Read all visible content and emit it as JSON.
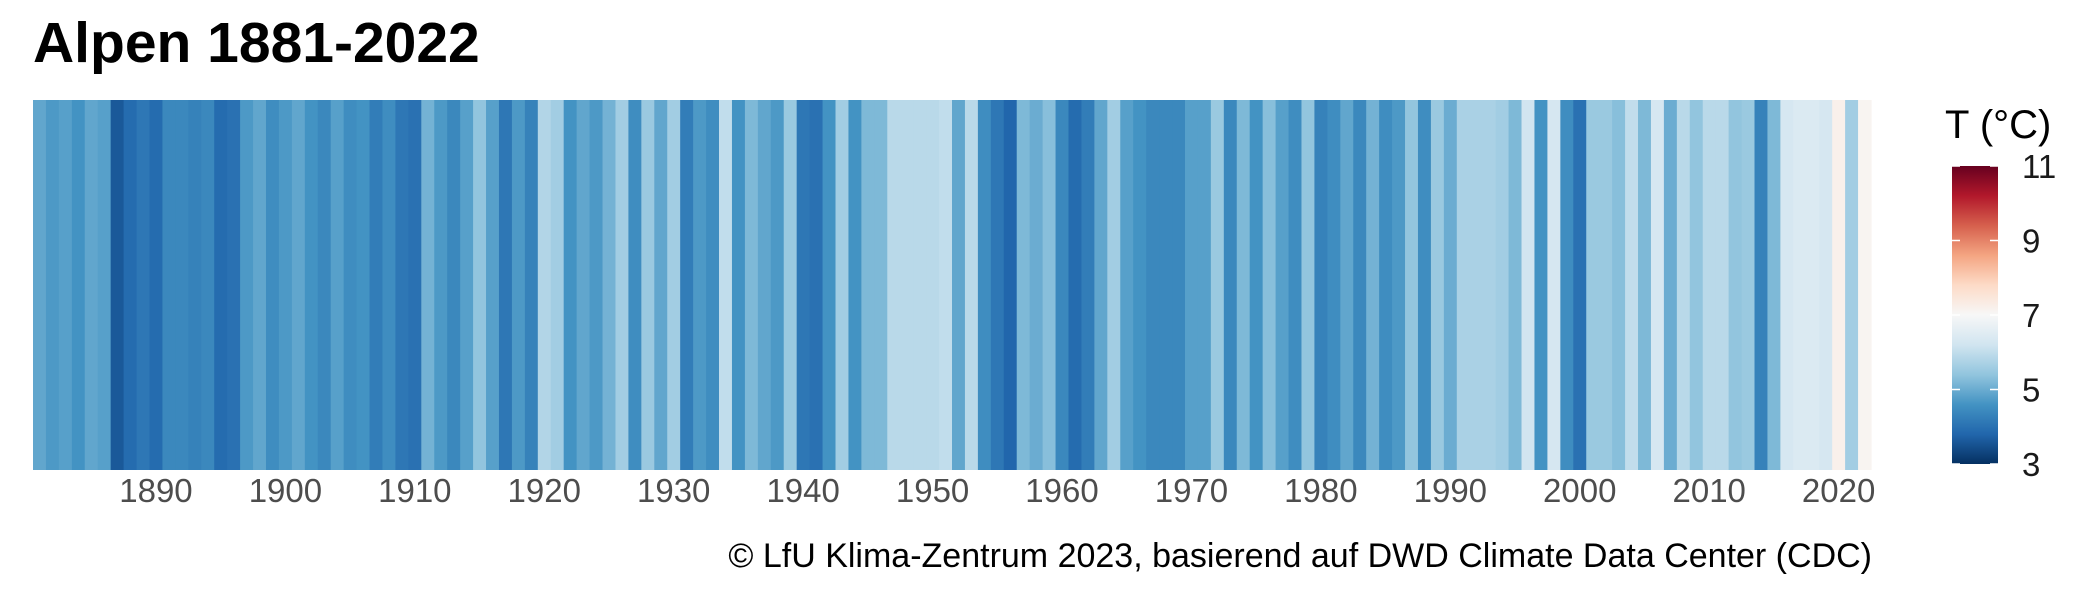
{
  "chart_data": {
    "type": "heatmap",
    "title": "Alpen 1881-2022",
    "caption": "© LfU Klima-Zentrum 2023, basierend auf DWD Climate Data Center (CDC)",
    "x_start": 1881,
    "x_end": 2022,
    "x_ticks": [
      1890,
      1900,
      1910,
      1920,
      1930,
      1940,
      1950,
      1960,
      1970,
      1980,
      1990,
      2000,
      2010,
      2020
    ],
    "legend": {
      "title": "T (°C)",
      "min": 3,
      "max": 11,
      "ticks": [
        3,
        5,
        7,
        9,
        11
      ]
    },
    "colorscale": [
      "#053061",
      "#2166ac",
      "#4393c3",
      "#92c5de",
      "#d1e5f0",
      "#f7f7f7",
      "#fddbc7",
      "#f4a582",
      "#d6604d",
      "#b2182b",
      "#67001f"
    ],
    "values": [
      4.9,
      4.7,
      4.8,
      4.6,
      4.9,
      4.8,
      3.6,
      3.9,
      4.1,
      3.9,
      4.4,
      4.4,
      4.3,
      4.4,
      3.9,
      4.0,
      4.7,
      4.9,
      4.5,
      4.7,
      4.9,
      4.6,
      4.4,
      4.8,
      4.5,
      4.6,
      4.2,
      4.5,
      4.1,
      4.0,
      5.1,
      4.7,
      4.4,
      4.8,
      5.4,
      4.8,
      4.1,
      4.7,
      4.3,
      5.8,
      5.6,
      4.6,
      4.9,
      4.7,
      5.1,
      5.6,
      4.5,
      5.5,
      4.9,
      5.6,
      4.2,
      4.7,
      4.5,
      6.0,
      4.6,
      5.2,
      4.9,
      4.7,
      5.5,
      4.1,
      4.0,
      4.6,
      5.6,
      4.6,
      5.2,
      5.2,
      5.9,
      5.9,
      5.9,
      5.9,
      6.0,
      4.9,
      5.9,
      4.5,
      4.1,
      3.8,
      5.2,
      5.0,
      5.3,
      4.4,
      3.9,
      4.2,
      4.9,
      5.6,
      4.8,
      4.6,
      4.4,
      4.4,
      4.4,
      4.8,
      4.8,
      5.5,
      4.4,
      5.2,
      4.6,
      5.3,
      4.8,
      4.5,
      5.4,
      4.3,
      4.5,
      4.9,
      4.4,
      5.1,
      4.5,
      4.7,
      5.4,
      4.5,
      5.5,
      5.0,
      5.7,
      5.7,
      5.7,
      5.6,
      5.2,
      6.2,
      4.6,
      6.3,
      4.5,
      4.0,
      5.5,
      5.5,
      5.3,
      6.0,
      5.2,
      6.3,
      5.0,
      5.9,
      5.4,
      5.9,
      5.9,
      5.4,
      5.5,
      4.3,
      5.2,
      6.3,
      6.4,
      6.4,
      6.3,
      7.2,
      5.6,
      7.1
    ]
  }
}
